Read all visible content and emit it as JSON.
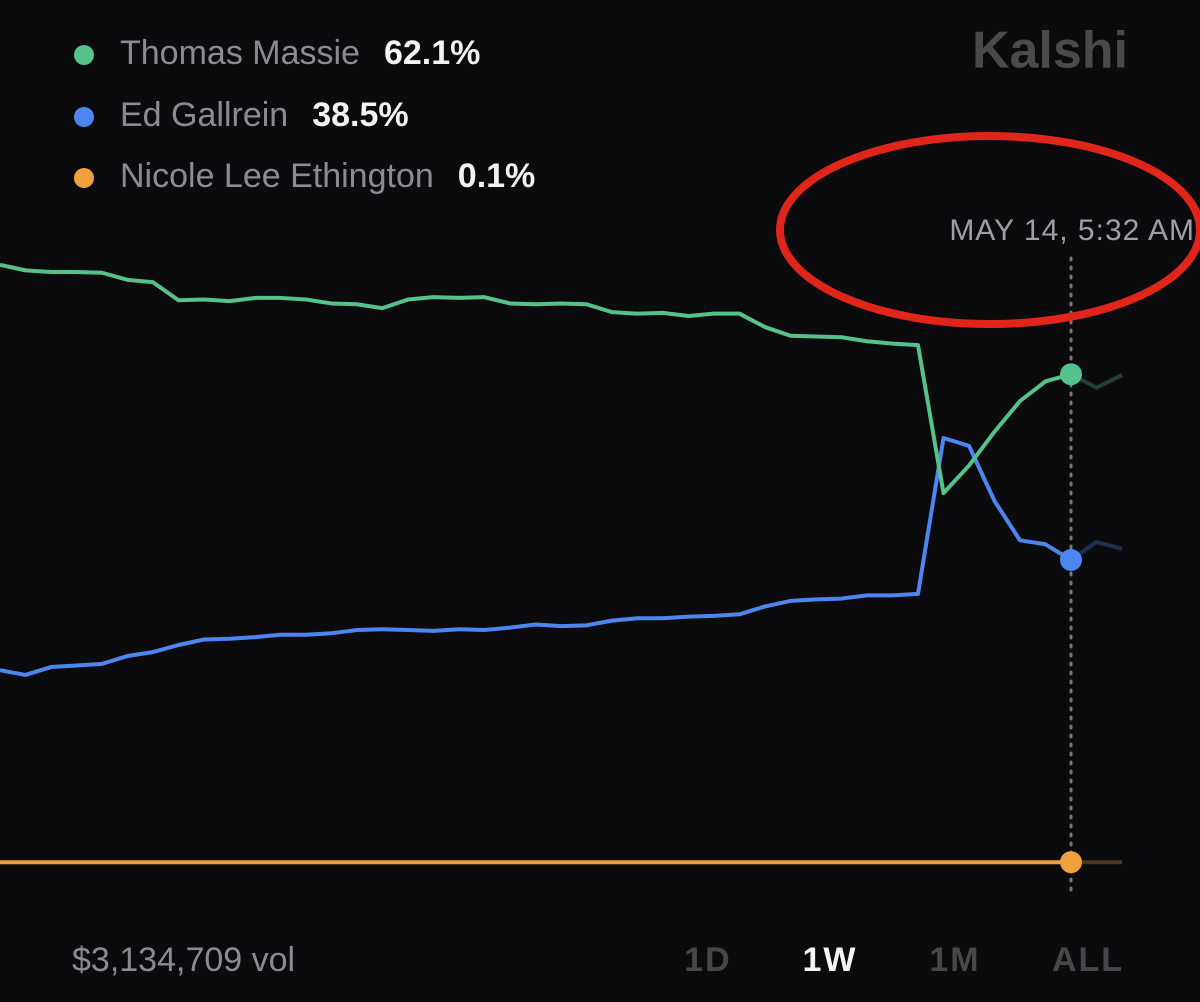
{
  "chart_data": {
    "type": "line",
    "brand": "Kalshi",
    "annotation": "MAY 14, 5:32 AM",
    "ylim": [
      0,
      100
    ],
    "series": [
      {
        "name": "Thomas Massie",
        "color": "#55c28c",
        "values": [
          76.0,
          75.3,
          75.1,
          75.1,
          75.0,
          74.1,
          73.8,
          71.5,
          71.6,
          71.4,
          71.8,
          71.8,
          71.6,
          71.1,
          71.0,
          70.5,
          71.6,
          71.9,
          71.8,
          71.9,
          71.1,
          71.0,
          71.1,
          71.0,
          70.0,
          69.8,
          69.9,
          69.5,
          69.8,
          69.8,
          68.1,
          67.0,
          66.9,
          66.8,
          66.3,
          66.0,
          65.8,
          47.0,
          50.5,
          54.8,
          58.7,
          61.2,
          62.1,
          60.4,
          62.0
        ],
        "value_labels": [
          null,
          null,
          null,
          null,
          null,
          null,
          null,
          null,
          null,
          null,
          null,
          null,
          null,
          null,
          null,
          null,
          null,
          null,
          null,
          null,
          null,
          null,
          null,
          null,
          null,
          null,
          null,
          null,
          null,
          null,
          null,
          null,
          null,
          null,
          null,
          null,
          null,
          null,
          null,
          null,
          null,
          null,
          "62.1%",
          null,
          null
        ]
      },
      {
        "name": "Ed Gallrein",
        "color": "#4d86f0",
        "values": [
          24.5,
          23.9,
          24.9,
          25.1,
          25.3,
          26.3,
          26.8,
          27.7,
          28.4,
          28.5,
          28.7,
          29.0,
          29.0,
          29.2,
          29.6,
          29.7,
          29.6,
          29.5,
          29.7,
          29.6,
          29.9,
          30.3,
          30.1,
          30.2,
          30.8,
          31.1,
          31.1,
          31.3,
          31.4,
          31.6,
          32.6,
          33.3,
          33.5,
          33.6,
          34.0,
          34.0,
          34.2,
          54.0,
          53.0,
          46.0,
          41.0,
          40.5,
          38.5,
          40.8,
          39.9
        ],
        "value_labels": [
          null,
          null,
          null,
          null,
          null,
          null,
          null,
          null,
          null,
          null,
          null,
          null,
          null,
          null,
          null,
          null,
          null,
          null,
          null,
          null,
          null,
          null,
          null,
          null,
          null,
          null,
          null,
          null,
          null,
          null,
          null,
          null,
          null,
          null,
          null,
          null,
          null,
          null,
          null,
          null,
          null,
          null,
          "38.5%",
          null,
          null
        ]
      },
      {
        "name": "Nicole Lee Ethington",
        "color": "#f0a03c",
        "values": [
          0.1,
          0.1,
          0.1,
          0.1,
          0.1,
          0.1,
          0.1,
          0.1,
          0.1,
          0.1,
          0.1,
          0.1,
          0.1,
          0.1,
          0.1,
          0.1,
          0.1,
          0.1,
          0.1,
          0.1,
          0.1,
          0.1,
          0.1,
          0.1,
          0.1,
          0.1,
          0.1,
          0.1,
          0.1,
          0.1,
          0.1,
          0.1,
          0.1,
          0.1,
          0.1,
          0.1,
          0.1,
          0.1,
          0.1,
          0.1,
          0.1,
          0.1,
          0.1,
          0.1,
          0.1
        ],
        "value_labels": [
          null,
          null,
          null,
          null,
          null,
          null,
          null,
          null,
          null,
          null,
          null,
          null,
          null,
          null,
          null,
          null,
          null,
          null,
          null,
          null,
          null,
          null,
          null,
          null,
          null,
          null,
          null,
          null,
          null,
          null,
          null,
          null,
          null,
          null,
          null,
          null,
          null,
          null,
          null,
          null,
          null,
          null,
          "0.1%",
          null,
          null
        ]
      }
    ],
    "volume": {
      "value": 3134709,
      "label": "$3,134,709 vol"
    },
    "ranges": [
      "1D",
      "1W",
      "1M",
      "ALL"
    ],
    "selected_range_index": 1
  }
}
